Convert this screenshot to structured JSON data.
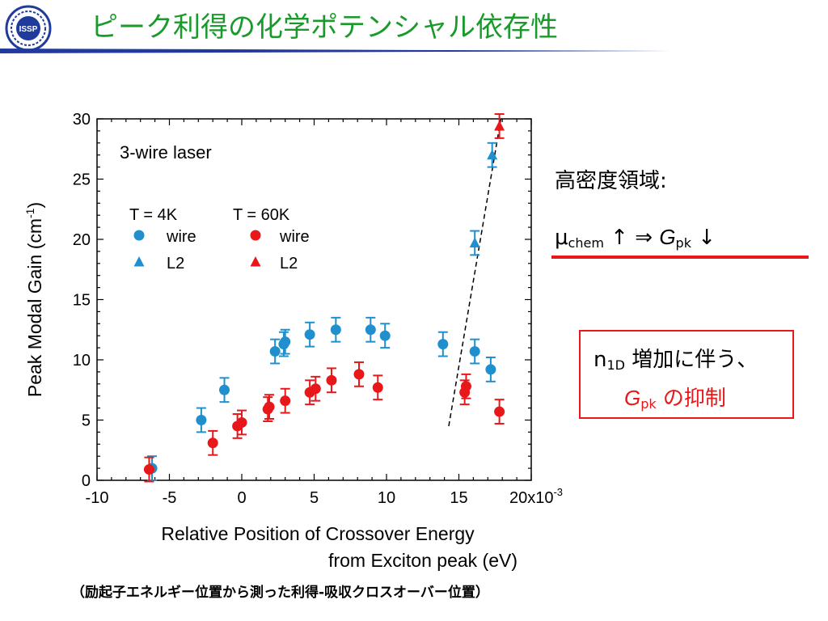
{
  "header": {
    "title": "ピーク利得の化学ポテンシャル依存性",
    "logo_text": "ISSP",
    "title_color": "#1a9a2a",
    "rule_color": "#1f3c9c"
  },
  "chart_data": {
    "type": "scatter",
    "title": "",
    "panel_label": "3-wire laser",
    "xlabel": [
      "Relative Position of Crossover Energy",
      "from Exciton peak (eV)"
    ],
    "ylabel": "Peak Modal Gain (cm",
    "ylabel_sup": "-1",
    "ylabel_close": ")",
    "xlim": [
      -0.01,
      0.02
    ],
    "ylim": [
      0,
      30
    ],
    "x_ticks": [
      -0.01,
      -0.005,
      0.0,
      0.005,
      0.01,
      0.015
    ],
    "x_tick_labels": [
      "-10",
      "-5",
      "0",
      "5",
      "10",
      "15"
    ],
    "x_tick_last_label": "20x10",
    "x_tick_last_sup": "-3",
    "y_ticks": [
      0,
      5,
      10,
      15,
      20,
      25,
      30
    ],
    "y_tick_labels": [
      "0",
      "5",
      "10",
      "15",
      "20",
      "25",
      "30"
    ],
    "legend": {
      "placement": "upper-left",
      "groups": [
        {
          "header": "T = 4K",
          "entries": [
            {
              "label": "wire",
              "marker": "circle",
              "color": "#1f8fce"
            },
            {
              "label": "L2",
              "marker": "triangle",
              "color": "#1f8fce"
            }
          ]
        },
        {
          "header": "T = 60K",
          "entries": [
            {
              "label": "wire",
              "marker": "circle",
              "color": "#e8181a"
            },
            {
              "label": "L2",
              "marker": "triangle",
              "color": "#e8181a"
            }
          ]
        }
      ]
    },
    "series": [
      {
        "name": "T = 4K wire",
        "marker": "circle",
        "color": "#1f8fce",
        "points": [
          {
            "x": -0.0062,
            "y": 1.0,
            "err": 1.0
          },
          {
            "x": -0.0028,
            "y": 5.0,
            "err": 1.0
          },
          {
            "x": -0.0012,
            "y": 7.5,
            "err": 1.0
          },
          {
            "x": 0.0023,
            "y": 10.7,
            "err": 1.0
          },
          {
            "x": 0.0029,
            "y": 11.3,
            "err": 1.0
          },
          {
            "x": 0.003,
            "y": 11.5,
            "err": 1.0
          },
          {
            "x": 0.0047,
            "y": 12.1,
            "err": 1.0
          },
          {
            "x": 0.0065,
            "y": 12.5,
            "err": 1.0
          },
          {
            "x": 0.0089,
            "y": 12.5,
            "err": 1.0
          },
          {
            "x": 0.0099,
            "y": 12.0,
            "err": 1.0
          },
          {
            "x": 0.0139,
            "y": 11.3,
            "err": 1.0
          },
          {
            "x": 0.0161,
            "y": 10.7,
            "err": 1.0
          },
          {
            "x": 0.0172,
            "y": 9.2,
            "err": 1.0
          }
        ]
      },
      {
        "name": "T = 4K L2",
        "marker": "triangle",
        "color": "#1f8fce",
        "points": [
          {
            "x": 0.0161,
            "y": 19.7,
            "err": 1.0
          },
          {
            "x": 0.0173,
            "y": 27.0,
            "err": 1.0
          }
        ]
      },
      {
        "name": "T = 60K wire",
        "marker": "circle",
        "color": "#e8181a",
        "points": [
          {
            "x": -0.0064,
            "y": 0.9,
            "err": 1.0
          },
          {
            "x": -0.002,
            "y": 3.1,
            "err": 1.0
          },
          {
            "x": -0.0003,
            "y": 4.5,
            "err": 1.0
          },
          {
            "x": 0.0,
            "y": 4.8,
            "err": 1.0
          },
          {
            "x": 0.0018,
            "y": 5.9,
            "err": 1.0
          },
          {
            "x": 0.0019,
            "y": 6.1,
            "err": 1.0
          },
          {
            "x": 0.003,
            "y": 6.6,
            "err": 1.0
          },
          {
            "x": 0.0047,
            "y": 7.3,
            "err": 1.0
          },
          {
            "x": 0.0051,
            "y": 7.6,
            "err": 1.0
          },
          {
            "x": 0.0062,
            "y": 8.3,
            "err": 1.0
          },
          {
            "x": 0.0081,
            "y": 8.8,
            "err": 1.0
          },
          {
            "x": 0.0094,
            "y": 7.7,
            "err": 1.0
          },
          {
            "x": 0.0154,
            "y": 7.3,
            "err": 1.0
          },
          {
            "x": 0.0155,
            "y": 7.8,
            "err": 1.0
          },
          {
            "x": 0.0178,
            "y": 5.7,
            "err": 1.0
          }
        ]
      },
      {
        "name": "T = 60K L2",
        "marker": "triangle",
        "color": "#e8181a",
        "points": [
          {
            "x": 0.0178,
            "y": 29.4,
            "err": 1.0
          }
        ]
      }
    ],
    "guide_line": {
      "style": "dashed",
      "color": "#000000",
      "from": {
        "x": 0.0143,
        "y": 4.5
      },
      "to": {
        "x": 0.0179,
        "y": 30.0
      }
    }
  },
  "notes": {
    "high_density": "高密度領域:",
    "mu": "μ",
    "mu_sub": "chem",
    "up_arrow": " ↑ ",
    "implies": " ⇒ ",
    "G": "G",
    "G_sub": "pk",
    "down_arrow": " ↓",
    "underline_color": "#e8181a"
  },
  "callout": {
    "n": "n",
    "n_sub": "1D",
    "line1_text": " 増加に伴う、",
    "G": "G",
    "G_sub": "pk",
    "line2_text": " の抑制",
    "border_color": "#e8181a"
  },
  "caption": "（励起子エネルギー位置から測った利得-吸収クロスオーバー位置）"
}
